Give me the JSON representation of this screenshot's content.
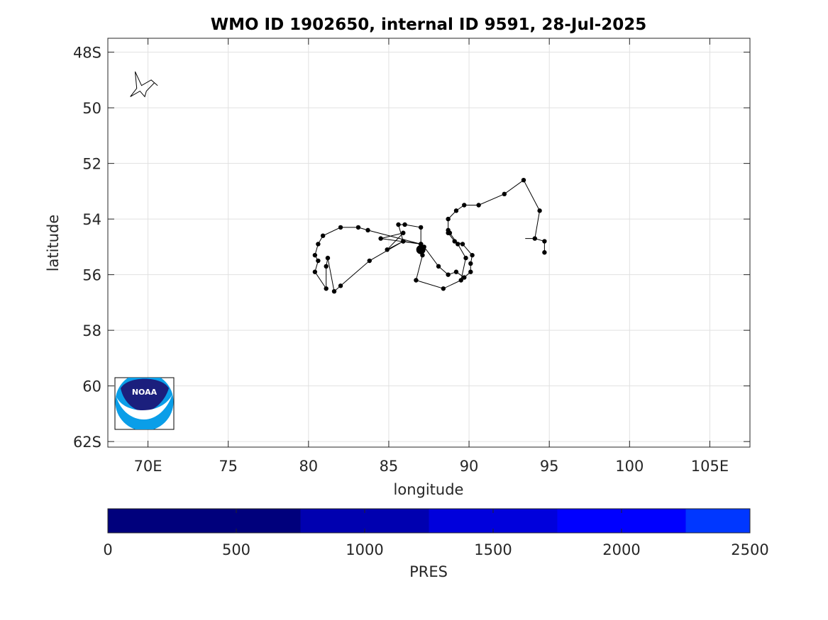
{
  "title": "WMO ID 1902650, internal ID 9591, 28-Jul-2025",
  "map": {
    "xlabel": "longitude",
    "ylabel": "latitude",
    "lon_range": [
      67.5,
      107.5
    ],
    "lat_range": [
      47.5,
      62.2
    ],
    "lon_ticks": [
      {
        "v": 70,
        "label": "70E"
      },
      {
        "v": 75,
        "label": "75"
      },
      {
        "v": 80,
        "label": "80"
      },
      {
        "v": 85,
        "label": "85"
      },
      {
        "v": 90,
        "label": "90"
      },
      {
        "v": 95,
        "label": "95"
      },
      {
        "v": 100,
        "label": "100"
      },
      {
        "v": 105,
        "label": "105E"
      }
    ],
    "lat_ticks": [
      {
        "v": 48,
        "label": "48S"
      },
      {
        "v": 50,
        "label": "50"
      },
      {
        "v": 52,
        "label": "52"
      },
      {
        "v": 54,
        "label": "54"
      },
      {
        "v": 56,
        "label": "56"
      },
      {
        "v": 58,
        "label": "58"
      },
      {
        "v": 60,
        "label": "60"
      },
      {
        "v": 62,
        "label": "62S"
      }
    ],
    "grid": true,
    "logo_text": "NOAA",
    "logo_placement": "bottom-left"
  },
  "chart_data": {
    "type": "scatter",
    "description_units": "lon (degrees E), lat (degrees S)",
    "track": [
      [
        94.7,
        55.2
      ],
      [
        94.7,
        54.8
      ],
      [
        94.1,
        54.7
      ],
      [
        94.4,
        53.7
      ],
      [
        93.4,
        52.6
      ],
      [
        92.2,
        53.1
      ],
      [
        90.6,
        53.5
      ],
      [
        89.7,
        53.5
      ],
      [
        89.2,
        53.7
      ],
      [
        88.7,
        54.0
      ],
      [
        88.7,
        54.4
      ],
      [
        88.8,
        54.5
      ],
      [
        89.3,
        54.9
      ],
      [
        89.8,
        55.4
      ],
      [
        89.5,
        56.2
      ],
      [
        88.4,
        56.5
      ],
      [
        86.7,
        56.2
      ],
      [
        87.1,
        55.3
      ],
      [
        86.9,
        55.1
      ],
      [
        87.0,
        54.9
      ],
      [
        85.9,
        54.8
      ],
      [
        84.9,
        55.1
      ],
      [
        85.9,
        54.5
      ],
      [
        84.5,
        54.7
      ],
      [
        87.0,
        54.9
      ],
      [
        87.0,
        54.3
      ],
      [
        86.0,
        54.2
      ],
      [
        85.6,
        54.2
      ],
      [
        85.9,
        54.8
      ],
      [
        83.8,
        55.5
      ],
      [
        82.0,
        56.4
      ],
      [
        81.6,
        56.6
      ],
      [
        81.2,
        55.4
      ],
      [
        81.1,
        55.7
      ],
      [
        81.1,
        56.5
      ],
      [
        80.4,
        55.9
      ],
      [
        80.6,
        55.5
      ],
      [
        80.4,
        55.3
      ],
      [
        80.6,
        54.9
      ],
      [
        80.9,
        54.6
      ],
      [
        82.0,
        54.3
      ],
      [
        83.1,
        54.3
      ],
      [
        83.7,
        54.4
      ],
      [
        87.0,
        54.9
      ],
      [
        87.2,
        55.0
      ],
      [
        88.1,
        55.7
      ],
      [
        88.7,
        56.0
      ],
      [
        89.2,
        55.9
      ],
      [
        89.7,
        56.1
      ],
      [
        90.1,
        55.9
      ],
      [
        90.1,
        55.6
      ],
      [
        90.2,
        55.3
      ],
      [
        89.6,
        54.9
      ],
      [
        89.1,
        54.8
      ],
      [
        88.7,
        54.5
      ]
    ],
    "last_position": [
      87.0,
      55.1
    ],
    "track_tail": [
      [
        93.5,
        54.7
      ],
      [
        94.1,
        54.7
      ]
    ],
    "colorbar": {
      "label": "PRES",
      "range": [
        0,
        2500
      ],
      "ticks": [
        0,
        500,
        1000,
        1500,
        2000,
        2500
      ],
      "bins": [
        {
          "from": 0,
          "to": 750,
          "color": "#00007c"
        },
        {
          "from": 750,
          "to": 1250,
          "color": "#0000b0"
        },
        {
          "from": 1250,
          "to": 1750,
          "color": "#0000dc"
        },
        {
          "from": 1750,
          "to": 2250,
          "color": "#0000ff"
        },
        {
          "from": 2250,
          "to": 2500,
          "color": "#0037ff"
        }
      ]
    },
    "coast_outline": [
      [
        69.2,
        48.7
      ],
      [
        69.6,
        49.2
      ],
      [
        70.2,
        49.0
      ],
      [
        70.6,
        49.2
      ],
      [
        70.4,
        49.1
      ],
      [
        69.9,
        49.4
      ],
      [
        69.8,
        49.6
      ],
      [
        69.5,
        49.4
      ],
      [
        68.9,
        49.6
      ],
      [
        69.3,
        49.3
      ],
      [
        69.2,
        48.7
      ]
    ]
  }
}
